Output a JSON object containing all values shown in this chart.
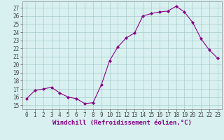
{
  "x": [
    0,
    1,
    2,
    3,
    4,
    5,
    6,
    7,
    8,
    9,
    10,
    11,
    12,
    13,
    14,
    15,
    16,
    17,
    18,
    19,
    20,
    21,
    22,
    23
  ],
  "y": [
    15.8,
    16.8,
    17.0,
    17.2,
    16.5,
    16.0,
    15.8,
    15.2,
    15.3,
    17.5,
    20.5,
    22.2,
    23.3,
    23.9,
    26.0,
    26.3,
    26.5,
    26.6,
    27.2,
    26.5,
    25.2,
    23.2,
    21.8,
    20.8
  ],
  "line_color": "#880088",
  "marker": "D",
  "marker_size": 2,
  "bg_color": "#d8f0f0",
  "grid_color": "#aacccc",
  "xlabel": "Windchill (Refroidissement éolien,°C)",
  "xlabel_color": "#880088",
  "ylim": [
    14.5,
    27.8
  ],
  "xlim": [
    -0.5,
    23.5
  ],
  "yticks": [
    15,
    16,
    17,
    18,
    19,
    20,
    21,
    22,
    23,
    24,
    25,
    26,
    27
  ],
  "xticks": [
    0,
    1,
    2,
    3,
    4,
    5,
    6,
    7,
    8,
    9,
    10,
    11,
    12,
    13,
    14,
    15,
    16,
    17,
    18,
    19,
    20,
    21,
    22,
    23
  ],
  "spine_color": "#888888",
  "tick_color": "#444444",
  "tick_label_fontsize": 5.5,
  "xlabel_fontsize": 6.5,
  "linewidth": 0.8
}
